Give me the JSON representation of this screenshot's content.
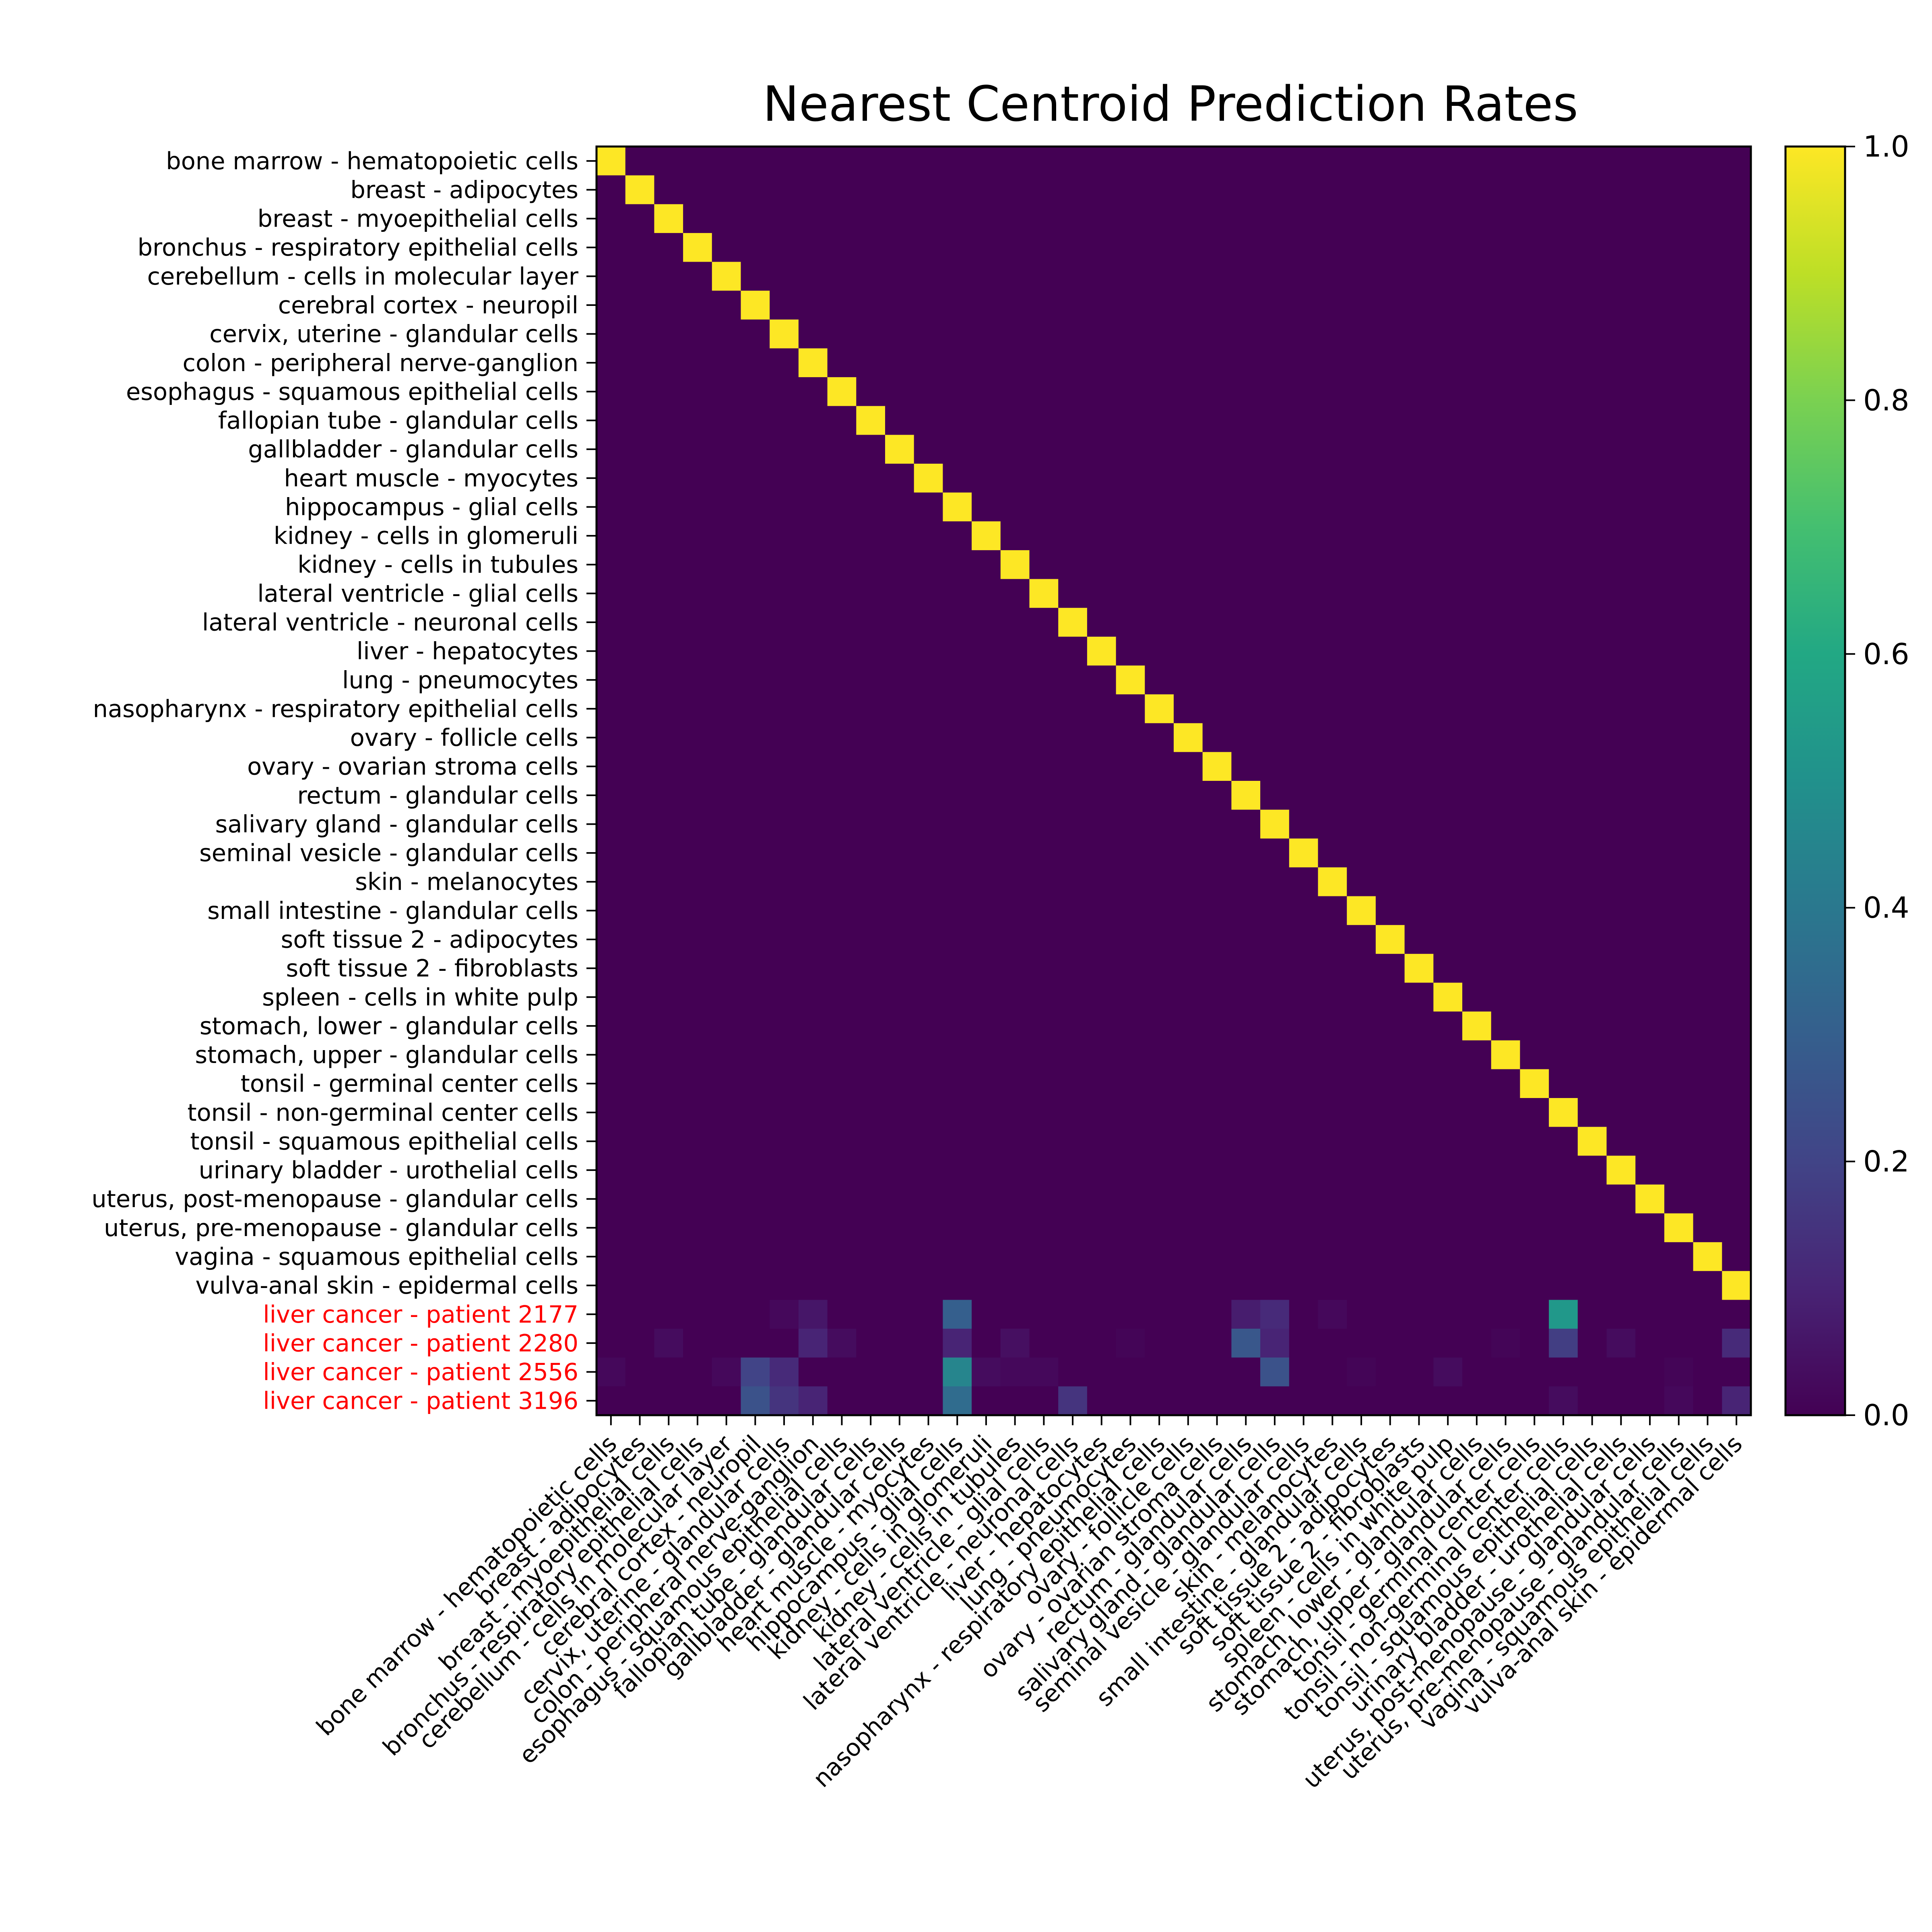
{
  "chart_data": {
    "type": "heatmap",
    "title": "Nearest Centroid Prediction Rates",
    "xlabel": "",
    "ylabel": "",
    "colormap": "viridis",
    "zlim": [
      0,
      1
    ],
    "colorbar_ticks": [
      "0.0",
      "0.2",
      "0.4",
      "0.6",
      "0.8",
      "1.0"
    ],
    "highlight_color": "#ff0000",
    "x_categories": [
      "bone marrow - hematopoietic cells",
      "breast - adipocytes",
      "breast - myoepithelial cells",
      "bronchus - respiratory epithelial cells",
      "cerebellum - cells in molecular layer",
      "cerebral cortex - neuropil",
      "cervix, uterine - glandular cells",
      "colon - peripheral nerve-ganglion",
      "esophagus - squamous epithelial cells",
      "fallopian tube - glandular cells",
      "gallbladder - glandular cells",
      "heart muscle - myocytes",
      "hippocampus - glial cells",
      "kidney - cells in glomeruli",
      "kidney - cells in tubules",
      "lateral ventricle - glial cells",
      "lateral ventricle - neuronal cells",
      "liver - hepatocytes",
      "lung - pneumocytes",
      "nasopharynx - respiratory epithelial cells",
      "ovary - follicle cells",
      "ovary - ovarian stroma cells",
      "rectum - glandular cells",
      "salivary gland - glandular cells",
      "seminal vesicle - glandular cells",
      "skin - melanocytes",
      "small intestine - glandular cells",
      "soft tissue 2 - adipocytes",
      "soft tissue 2 - fibroblasts",
      "spleen - cells in white pulp",
      "stomach, lower - glandular cells",
      "stomach, upper - glandular cells",
      "tonsil - germinal center cells",
      "tonsil - non-germinal center cells",
      "tonsil - squamous epithelial cells",
      "urinary bladder - urothelial cells",
      "uterus, post-menopause - glandular cells",
      "uterus, pre-menopause - glandular cells",
      "vagina - squamous epithelial cells",
      "vulva-anal skin - epidermal cells"
    ],
    "y_categories": [
      "bone marrow - hematopoietic cells",
      "breast - adipocytes",
      "breast - myoepithelial cells",
      "bronchus - respiratory epithelial cells",
      "cerebellum - cells in molecular layer",
      "cerebral cortex - neuropil",
      "cervix, uterine - glandular cells",
      "colon - peripheral nerve-ganglion",
      "esophagus - squamous epithelial cells",
      "fallopian tube - glandular cells",
      "gallbladder - glandular cells",
      "heart muscle - myocytes",
      "hippocampus - glial cells",
      "kidney - cells in glomeruli",
      "kidney - cells in tubules",
      "lateral ventricle - glial cells",
      "lateral ventricle - neuronal cells",
      "liver - hepatocytes",
      "lung - pneumocytes",
      "nasopharynx - respiratory epithelial cells",
      "ovary - follicle cells",
      "ovary - ovarian stroma cells",
      "rectum - glandular cells",
      "salivary gland - glandular cells",
      "seminal vesicle - glandular cells",
      "skin - melanocytes",
      "small intestine - glandular cells",
      "soft tissue 2 - adipocytes",
      "soft tissue 2 - fibroblasts",
      "spleen - cells in white pulp",
      "stomach, lower - glandular cells",
      "stomach, upper - glandular cells",
      "tonsil - germinal center cells",
      "tonsil - non-germinal center cells",
      "tonsil - squamous epithelial cells",
      "urinary bladder - urothelial cells",
      "uterus, post-menopause - glandular cells",
      "uterus, pre-menopause - glandular cells",
      "vagina - squamous epithelial cells",
      "vulva-anal skin - epidermal cells",
      "liver cancer - patient 2177",
      "liver cancer - patient 2280",
      "liver cancer - patient 2556",
      "liver cancer - patient 3196"
    ],
    "highlighted_rows": [
      40,
      41,
      42,
      43
    ],
    "diagonal_value": 1.0,
    "extra_rows_values": [
      [
        0.0,
        0.0,
        0.0,
        0.0,
        0.0,
        0.0,
        0.02,
        0.06,
        0.0,
        0.0,
        0.0,
        0.0,
        0.3,
        0.0,
        0.0,
        0.0,
        0.0,
        0.0,
        0.0,
        0.0,
        0.0,
        0.0,
        0.08,
        0.12,
        0.0,
        0.02,
        0.0,
        0.0,
        0.0,
        0.0,
        0.0,
        0.0,
        0.0,
        0.53,
        0.0,
        0.0,
        0.0,
        0.0,
        0.0,
        0.0
      ],
      [
        0.0,
        0.0,
        0.03,
        0.0,
        0.0,
        0.0,
        0.0,
        0.1,
        0.03,
        0.0,
        0.0,
        0.0,
        0.1,
        0.0,
        0.04,
        0.0,
        0.0,
        0.0,
        0.01,
        0.0,
        0.0,
        0.0,
        0.27,
        0.1,
        0.0,
        0.0,
        0.0,
        0.0,
        0.0,
        0.0,
        0.0,
        0.01,
        0.0,
        0.18,
        0.0,
        0.03,
        0.0,
        0.0,
        0.0,
        0.12
      ],
      [
        0.02,
        0.0,
        0.0,
        0.0,
        0.02,
        0.2,
        0.12,
        0.0,
        0.0,
        0.0,
        0.0,
        0.0,
        0.45,
        0.03,
        0.02,
        0.02,
        0.0,
        0.0,
        0.0,
        0.0,
        0.0,
        0.0,
        0.0,
        0.25,
        0.0,
        0.0,
        0.01,
        0.0,
        0.0,
        0.03,
        0.0,
        0.0,
        0.0,
        0.0,
        0.0,
        0.0,
        0.0,
        0.01,
        0.0,
        0.0
      ],
      [
        0.0,
        0.0,
        0.0,
        0.0,
        0.0,
        0.25,
        0.15,
        0.1,
        0.0,
        0.0,
        0.0,
        0.0,
        0.35,
        0.0,
        0.0,
        0.0,
        0.15,
        0.0,
        0.0,
        0.0,
        0.0,
        0.0,
        0.0,
        0.0,
        0.0,
        0.0,
        0.0,
        0.0,
        0.0,
        0.0,
        0.0,
        0.0,
        0.0,
        0.03,
        0.0,
        0.0,
        0.0,
        0.02,
        0.0,
        0.1
      ]
    ]
  }
}
